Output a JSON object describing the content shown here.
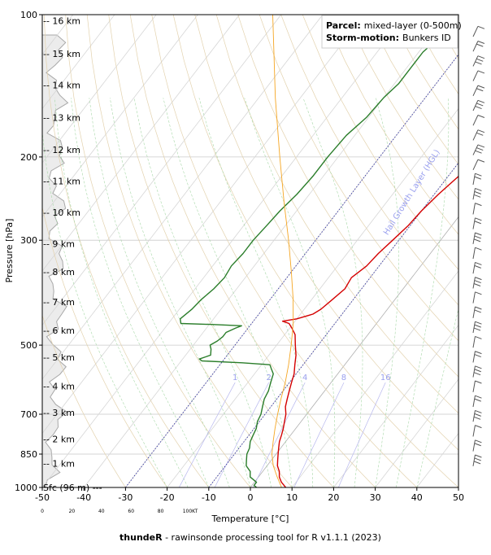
{
  "chart_data": {
    "type": "line",
    "xlabel": "Temperature [°C]",
    "ylabel": "Pressure [hPa]",
    "xlim": [
      -50,
      50
    ],
    "ylim": [
      1000,
      100
    ],
    "x_ticks": [
      -50,
      -40,
      -30,
      -20,
      -10,
      0,
      10,
      20,
      30,
      40,
      50
    ],
    "x_tick_labels": [
      "-50",
      "-40",
      "-30",
      "-20",
      "-10",
      "0",
      "10",
      "20",
      "30",
      "40",
      "50"
    ],
    "y_ticks": [
      100,
      200,
      300,
      500,
      700,
      850,
      1000
    ],
    "y_tick_labels": [
      "100",
      "200",
      "300",
      "500",
      "700",
      "850",
      "1000"
    ],
    "humidity_scale_ticks": [
      0,
      20,
      40,
      60,
      80,
      100
    ],
    "humidity_scale_labels": [
      "0",
      "20",
      "40",
      "60",
      "80",
      "100KT"
    ],
    "height_levels": [
      {
        "label": "Sfc (96 m) ---",
        "p": 1000
      },
      {
        "label": "-- 1 km",
        "p": 890
      },
      {
        "label": "-- 2 km",
        "p": 790
      },
      {
        "label": "-- 3 km",
        "p": 695
      },
      {
        "label": "-- 4 km",
        "p": 610
      },
      {
        "label": "-- 5 km",
        "p": 530
      },
      {
        "label": "-- 6 km",
        "p": 465
      },
      {
        "label": "-- 7 km",
        "p": 405
      },
      {
        "label": "-- 8 km",
        "p": 350
      },
      {
        "label": "-- 9 km",
        "p": 305
      },
      {
        "label": "-- 10 km",
        "p": 262
      },
      {
        "label": "-- 11 km",
        "p": 225
      },
      {
        "label": "-- 12 km",
        "p": 193
      },
      {
        "label": "-- 13 km",
        "p": 165
      },
      {
        "label": "-- 14 km",
        "p": 141
      },
      {
        "label": "-- 15 km",
        "p": 121
      },
      {
        "label": "-- 16 km",
        "p": 103
      }
    ],
    "mixing_ratio_labels": [
      "1",
      "2",
      "4",
      "8",
      "16"
    ],
    "hail_layer_label": "Hail Growth Layer (HGL)",
    "series": [
      {
        "name": "temperature",
        "color": "#d40000",
        "points": [
          [
            1000,
            8.5
          ],
          [
            975,
            6.5
          ],
          [
            950,
            5.0
          ],
          [
            925,
            4.0
          ],
          [
            900,
            2.5
          ],
          [
            875,
            1.5
          ],
          [
            850,
            0.5
          ],
          [
            825,
            -0.5
          ],
          [
            800,
            -1.5
          ],
          [
            775,
            -2.2
          ],
          [
            750,
            -3.0
          ],
          [
            725,
            -4.0
          ],
          [
            700,
            -5.0
          ],
          [
            675,
            -6.5
          ],
          [
            650,
            -7.5
          ],
          [
            625,
            -8.5
          ],
          [
            600,
            -9.5
          ],
          [
            575,
            -10.5
          ],
          [
            550,
            -12.0
          ],
          [
            525,
            -13.5
          ],
          [
            500,
            -15.5
          ],
          [
            475,
            -17.5
          ],
          [
            460,
            -19.5
          ],
          [
            450,
            -21.0
          ],
          [
            445,
            -23.0
          ],
          [
            440,
            -20.0
          ],
          [
            430,
            -17.0
          ],
          [
            420,
            -16.0
          ],
          [
            400,
            -15.0
          ],
          [
            380,
            -14.0
          ],
          [
            360,
            -14.5
          ],
          [
            340,
            -13.0
          ],
          [
            320,
            -12.5
          ],
          [
            300,
            -11.5
          ],
          [
            280,
            -10.5
          ],
          [
            260,
            -10.0
          ],
          [
            240,
            -9.0
          ],
          [
            220,
            -7.5
          ],
          [
            200,
            -6.0
          ],
          [
            180,
            -4.5
          ],
          [
            165,
            -2.0
          ],
          [
            150,
            -1.0
          ],
          [
            140,
            0.5
          ],
          [
            130,
            1.0
          ],
          [
            120,
            2.5
          ],
          [
            110,
            4.5
          ],
          [
            100,
            6.0
          ]
        ]
      },
      {
        "name": "dewpoint",
        "color": "#2a7d2a",
        "points": [
          [
            1000,
            1.5
          ],
          [
            990,
            0.5
          ],
          [
            975,
            0.5
          ],
          [
            950,
            -2.0
          ],
          [
            925,
            -3.0
          ],
          [
            900,
            -5.0
          ],
          [
            875,
            -6.0
          ],
          [
            850,
            -7.0
          ],
          [
            825,
            -7.5
          ],
          [
            800,
            -8.5
          ],
          [
            775,
            -9.0
          ],
          [
            750,
            -9.5
          ],
          [
            725,
            -10.5
          ],
          [
            700,
            -11.0
          ],
          [
            675,
            -12.0
          ],
          [
            650,
            -13.0
          ],
          [
            625,
            -13.5
          ],
          [
            600,
            -14.5
          ],
          [
            575,
            -15.5
          ],
          [
            560,
            -17.0
          ],
          [
            550,
            -18.0
          ],
          [
            545,
            -25.0
          ],
          [
            540,
            -35.0
          ],
          [
            535,
            -36.0
          ],
          [
            525,
            -34.0
          ],
          [
            510,
            -35.0
          ],
          [
            500,
            -36.0
          ],
          [
            490,
            -35.0
          ],
          [
            480,
            -34.5
          ],
          [
            470,
            -34.5
          ],
          [
            460,
            -33.0
          ],
          [
            455,
            -32.0
          ],
          [
            452,
            -40.0
          ],
          [
            450,
            -47.0
          ],
          [
            440,
            -48.0
          ],
          [
            420,
            -47.0
          ],
          [
            400,
            -46.5
          ],
          [
            380,
            -45.5
          ],
          [
            360,
            -45.0
          ],
          [
            340,
            -45.5
          ],
          [
            320,
            -45.0
          ],
          [
            300,
            -45.0
          ],
          [
            280,
            -44.5
          ],
          [
            260,
            -44.0
          ],
          [
            240,
            -43.0
          ],
          [
            220,
            -42.5
          ],
          [
            200,
            -42.5
          ],
          [
            180,
            -42.0
          ],
          [
            165,
            -40.5
          ],
          [
            150,
            -40.0
          ],
          [
            140,
            -39.0
          ],
          [
            130,
            -39.0
          ],
          [
            120,
            -39.0
          ],
          [
            110,
            -37.5
          ],
          [
            100,
            -36.5
          ]
        ]
      },
      {
        "name": "parcel",
        "color": "#f5a623",
        "points": [
          [
            1000,
            7.5
          ],
          [
            950,
            4.5
          ],
          [
            900,
            1.5
          ],
          [
            850,
            -1.0
          ],
          [
            800,
            -3.0
          ],
          [
            750,
            -5.0
          ],
          [
            700,
            -7.0
          ],
          [
            650,
            -9.0
          ],
          [
            600,
            -11.0
          ],
          [
            550,
            -13.5
          ],
          [
            500,
            -16.5
          ],
          [
            450,
            -20.0
          ],
          [
            400,
            -24.5
          ],
          [
            350,
            -30.0
          ],
          [
            300,
            -36.5
          ],
          [
            250,
            -44.5
          ],
          [
            200,
            -54.0
          ],
          [
            150,
            -66.0
          ],
          [
            100,
            -82.0
          ]
        ]
      }
    ],
    "info_box": {
      "parcel_label": "Parcel:",
      "parcel_value": "mixed-layer (0-500m)",
      "storm_label": "Storm-motion:",
      "storm_value": "Bunkers ID"
    }
  },
  "footer": {
    "bold": "thundeR",
    "rest": " - rawinsonde processing tool for R v1.1.1 (2023)"
  }
}
